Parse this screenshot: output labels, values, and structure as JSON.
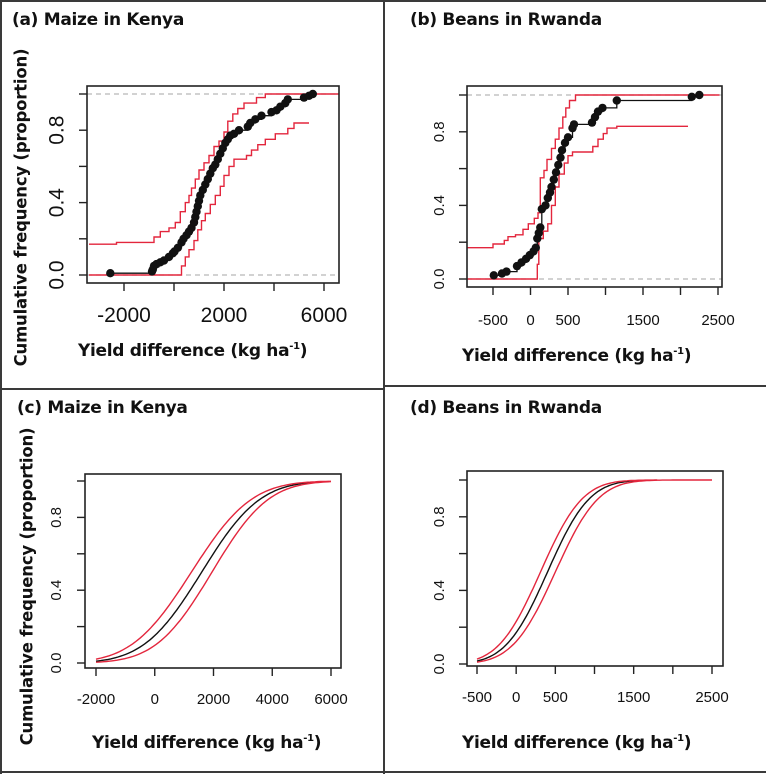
{
  "figure": {
    "x_axis_title_main": "Yield difference (kg ha",
    "x_axis_title_sup": "-1",
    "x_axis_title_close": ")",
    "y_axis_title": "Cumulative frequency (proportion)"
  },
  "colors": {
    "ecdf": "#111111",
    "bounds": "#e3263d",
    "reference": "#b8b8b8",
    "axis": "#222222"
  },
  "chart_data": [
    {
      "id": "a",
      "title": "(a) Maize in Kenya",
      "type": "scatter",
      "subtype": "empirical cumulative distribution (step) with confidence envelope",
      "xlabel": "Yield difference (kg ha-1)",
      "ylabel": "Cumulative frequency (proportion)",
      "xlim": [
        -3400,
        6600
      ],
      "ylim": [
        0,
        1
      ],
      "x_ticks": [
        -2000,
        0,
        2000,
        4000,
        6000
      ],
      "x_tick_labels": [
        "-2000",
        "",
        "2000",
        "",
        "6000"
      ],
      "y_ticks": [
        0,
        0.2,
        0.4,
        0.6,
        0.8,
        1.0
      ],
      "y_tick_labels": [
        "0.0",
        "",
        "0.4",
        "",
        "0.8",
        ""
      ],
      "reference_lines": [
        0,
        1
      ],
      "ecdf_points": [
        [
          -2550,
          0.01
        ],
        [
          -880,
          0.02
        ],
        [
          -850,
          0.03
        ],
        [
          -800,
          0.05
        ],
        [
          -700,
          0.06
        ],
        [
          -550,
          0.07
        ],
        [
          -400,
          0.08
        ],
        [
          -200,
          0.1
        ],
        [
          -50,
          0.12
        ],
        [
          20,
          0.13
        ],
        [
          150,
          0.15
        ],
        [
          300,
          0.18
        ],
        [
          380,
          0.2
        ],
        [
          500,
          0.22
        ],
        [
          600,
          0.24
        ],
        [
          700,
          0.26
        ],
        [
          800,
          0.29
        ],
        [
          850,
          0.32
        ],
        [
          900,
          0.35
        ],
        [
          950,
          0.38
        ],
        [
          1000,
          0.41
        ],
        [
          1050,
          0.44
        ],
        [
          1150,
          0.47
        ],
        [
          1250,
          0.5
        ],
        [
          1350,
          0.53
        ],
        [
          1450,
          0.56
        ],
        [
          1550,
          0.59
        ],
        [
          1650,
          0.61
        ],
        [
          1750,
          0.64
        ],
        [
          1850,
          0.67
        ],
        [
          1950,
          0.7
        ],
        [
          2050,
          0.73
        ],
        [
          2150,
          0.75
        ],
        [
          2250,
          0.77
        ],
        [
          2400,
          0.78
        ],
        [
          2600,
          0.8
        ],
        [
          2950,
          0.82
        ],
        [
          3050,
          0.84
        ],
        [
          3250,
          0.86
        ],
        [
          3500,
          0.88
        ],
        [
          3900,
          0.9
        ],
        [
          4100,
          0.91
        ],
        [
          4250,
          0.93
        ],
        [
          4450,
          0.95
        ],
        [
          4550,
          0.97
        ],
        [
          5200,
          0.98
        ],
        [
          5400,
          0.99
        ],
        [
          5550,
          1.0
        ]
      ],
      "upper_bound_steps": [
        [
          -3400,
          0.17
        ],
        [
          -2300,
          0.18
        ],
        [
          -1000,
          0.18
        ],
        [
          -800,
          0.21
        ],
        [
          -550,
          0.24
        ],
        [
          -200,
          0.26
        ],
        [
          50,
          0.29
        ],
        [
          250,
          0.35
        ],
        [
          450,
          0.4
        ],
        [
          600,
          0.44
        ],
        [
          700,
          0.48
        ],
        [
          850,
          0.53
        ],
        [
          1000,
          0.58
        ],
        [
          1200,
          0.62
        ],
        [
          1400,
          0.66
        ],
        [
          1600,
          0.71
        ],
        [
          1800,
          0.74
        ],
        [
          2000,
          0.79
        ],
        [
          2150,
          0.85
        ],
        [
          2350,
          0.89
        ],
        [
          2550,
          0.92
        ],
        [
          2800,
          0.95
        ],
        [
          3300,
          0.98
        ],
        [
          3650,
          1.0
        ],
        [
          6600,
          1.0
        ]
      ],
      "lower_bound_steps": [
        [
          -3400,
          0.0
        ],
        [
          160,
          0.0
        ],
        [
          300,
          0.05
        ],
        [
          450,
          0.1
        ],
        [
          600,
          0.14
        ],
        [
          800,
          0.19
        ],
        [
          950,
          0.25
        ],
        [
          1100,
          0.3
        ],
        [
          1250,
          0.34
        ],
        [
          1450,
          0.39
        ],
        [
          1650,
          0.44
        ],
        [
          1850,
          0.49
        ],
        [
          2000,
          0.55
        ],
        [
          2200,
          0.6
        ],
        [
          2400,
          0.64
        ],
        [
          2900,
          0.66
        ],
        [
          3100,
          0.69
        ],
        [
          3350,
          0.72
        ],
        [
          3650,
          0.75
        ],
        [
          4050,
          0.78
        ],
        [
          4550,
          0.81
        ],
        [
          4800,
          0.84
        ],
        [
          5400,
          0.84
        ]
      ]
    },
    {
      "id": "b",
      "title": "(b) Beans in Rwanda",
      "type": "scatter",
      "subtype": "empirical cumulative distribution (step) with confidence envelope",
      "xlabel": "Yield difference (kg ha-1)",
      "ylabel": "",
      "xlim": [
        -850,
        2520
      ],
      "ylim": [
        0,
        1
      ],
      "x_ticks": [
        -500,
        0,
        500,
        1000,
        1500,
        2000,
        2500
      ],
      "x_tick_labels": [
        "-500",
        "0",
        "500",
        "",
        "1500",
        "",
        "2500"
      ],
      "y_ticks": [
        0,
        0.2,
        0.4,
        0.6,
        0.8,
        1.0
      ],
      "y_tick_labels": [
        "0.0",
        "",
        "0.4",
        "",
        "0.8",
        ""
      ],
      "reference_lines": [
        0,
        1
      ],
      "ecdf_points": [
        [
          -490,
          0.02
        ],
        [
          -380,
          0.03
        ],
        [
          -320,
          0.04
        ],
        [
          -180,
          0.07
        ],
        [
          -120,
          0.09
        ],
        [
          -60,
          0.11
        ],
        [
          -10,
          0.13
        ],
        [
          40,
          0.15
        ],
        [
          70,
          0.17
        ],
        [
          90,
          0.22
        ],
        [
          110,
          0.25
        ],
        [
          130,
          0.28
        ],
        [
          150,
          0.38
        ],
        [
          200,
          0.4
        ],
        [
          230,
          0.44
        ],
        [
          260,
          0.47
        ],
        [
          280,
          0.5
        ],
        [
          310,
          0.54
        ],
        [
          340,
          0.58
        ],
        [
          370,
          0.62
        ],
        [
          400,
          0.66
        ],
        [
          420,
          0.7
        ],
        [
          460,
          0.74
        ],
        [
          500,
          0.77
        ],
        [
          560,
          0.82
        ],
        [
          580,
          0.84
        ],
        [
          820,
          0.85
        ],
        [
          860,
          0.88
        ],
        [
          900,
          0.91
        ],
        [
          960,
          0.93
        ],
        [
          1150,
          0.97
        ],
        [
          2150,
          0.99
        ],
        [
          2250,
          1.0
        ]
      ],
      "upper_bound_steps": [
        [
          -850,
          0.17
        ],
        [
          -500,
          0.19
        ],
        [
          -350,
          0.21
        ],
        [
          -300,
          0.23
        ],
        [
          -200,
          0.24
        ],
        [
          -100,
          0.27
        ],
        [
          -30,
          0.3
        ],
        [
          50,
          0.33
        ],
        [
          100,
          0.36
        ],
        [
          130,
          0.55
        ],
        [
          180,
          0.59
        ],
        [
          220,
          0.65
        ],
        [
          280,
          0.71
        ],
        [
          330,
          0.76
        ],
        [
          380,
          0.82
        ],
        [
          430,
          0.88
        ],
        [
          470,
          0.93
        ],
        [
          520,
          0.97
        ],
        [
          600,
          1.0
        ],
        [
          2520,
          1.0
        ]
      ],
      "lower_bound_steps": [
        [
          -850,
          0.0
        ],
        [
          60,
          0.0
        ],
        [
          90,
          0.08
        ],
        [
          110,
          0.22
        ],
        [
          170,
          0.26
        ],
        [
          230,
          0.3
        ],
        [
          280,
          0.4
        ],
        [
          330,
          0.5
        ],
        [
          380,
          0.57
        ],
        [
          450,
          0.63
        ],
        [
          500,
          0.67
        ],
        [
          560,
          0.69
        ],
        [
          760,
          0.69
        ],
        [
          830,
          0.72
        ],
        [
          900,
          0.76
        ],
        [
          970,
          0.79
        ],
        [
          1020,
          0.82
        ],
        [
          1150,
          0.83
        ],
        [
          2100,
          0.83
        ]
      ]
    },
    {
      "id": "c",
      "title": "(c) Maize in Kenya",
      "type": "line",
      "subtype": "fitted cumulative distribution with confidence envelope",
      "xlabel": "Yield difference (kg ha-1)",
      "ylabel": "Cumulative frequency (proportion)",
      "xlim": [
        -2380,
        6350
      ],
      "ylim": [
        0,
        1
      ],
      "x_ticks": [
        -2000,
        0,
        2000,
        4000,
        6000
      ],
      "x_tick_labels": [
        "-2000",
        "0",
        "2000",
        "4000",
        "6000"
      ],
      "y_ticks": [
        0,
        0.2,
        0.4,
        0.6,
        0.8,
        1.0
      ],
      "y_tick_labels": [
        "0.0",
        "",
        "0.4",
        "",
        "0.8",
        ""
      ],
      "series": [
        {
          "name": "fitted",
          "color_key": "ecdf",
          "mean": 1600,
          "sd": 1550,
          "x_range": [
            -2000,
            5500
          ]
        },
        {
          "name": "upper",
          "color_key": "bounds",
          "mean": 1250,
          "sd": 1600,
          "x_range": [
            -2000,
            6000
          ]
        },
        {
          "name": "lower",
          "color_key": "bounds",
          "mean": 1950,
          "sd": 1500,
          "x_range": [
            -2000,
            6000
          ]
        }
      ]
    },
    {
      "id": "d",
      "title": "(d) Beans in Rwanda",
      "type": "line",
      "subtype": "fitted cumulative distribution with confidence envelope",
      "xlabel": "Yield difference (kg ha-1)",
      "ylabel": "",
      "xlim": [
        -630,
        2600
      ],
      "ylim": [
        0,
        1
      ],
      "x_ticks": [
        -500,
        0,
        500,
        1000,
        1500,
        2000,
        2500
      ],
      "x_tick_labels": [
        "-500",
        "0",
        "500",
        "",
        "1500",
        "",
        "2500"
      ],
      "y_ticks": [
        0,
        0.2,
        0.4,
        0.6,
        0.8,
        1.0
      ],
      "y_tick_labels": [
        "0.0",
        "",
        "0.4",
        "",
        "0.8",
        ""
      ],
      "series": [
        {
          "name": "fitted",
          "color_key": "ecdf",
          "mean": 400,
          "sd": 420,
          "x_range": [
            -500,
            1600
          ]
        },
        {
          "name": "upper",
          "color_key": "bounds",
          "mean": 310,
          "sd": 420,
          "x_range": [
            -500,
            1800
          ]
        },
        {
          "name": "lower",
          "color_key": "bounds",
          "mean": 500,
          "sd": 430,
          "x_range": [
            -500,
            2500
          ]
        }
      ]
    }
  ]
}
